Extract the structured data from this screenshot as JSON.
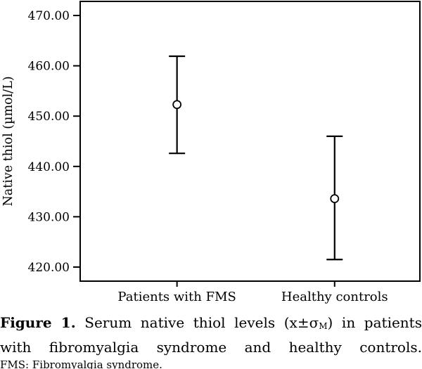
{
  "chart_data": {
    "type": "errorbar",
    "title": "",
    "categories": [
      "Patients with FMS",
      "Healthy controls"
    ],
    "series": [
      {
        "name": "Serum native thiol (mean ± SEM)",
        "mean": [
          452.3,
          433.6
        ],
        "upper": [
          461.9,
          446.0
        ],
        "lower": [
          442.6,
          421.5
        ]
      }
    ],
    "xlabel": "",
    "ylabel": "Native thiol (µmol/L)",
    "yticks": [
      470,
      460,
      450,
      440,
      430,
      420
    ],
    "ytick_labels": [
      "470.00",
      "460.00",
      "450.00",
      "440.00",
      "430.00",
      "420.00"
    ],
    "ylim": [
      417.2,
      472.8
    ],
    "grid": false,
    "legend": "none",
    "marker": "open-circle",
    "frame": true
  },
  "caption": {
    "line1_label": "Figure 1.",
    "line1_text": "Serum native thiol levels (x±σ",
    "line1_sub": "M",
    "line1_end": ") in patients",
    "line2": "with fibromyalgia syndrome and healthy controls.",
    "footnote": "FMS: Fibromyalgia syndrome."
  },
  "colors": {
    "ink": "#000000",
    "background": "#ffffff",
    "marker_fill": "#ffffff"
  }
}
